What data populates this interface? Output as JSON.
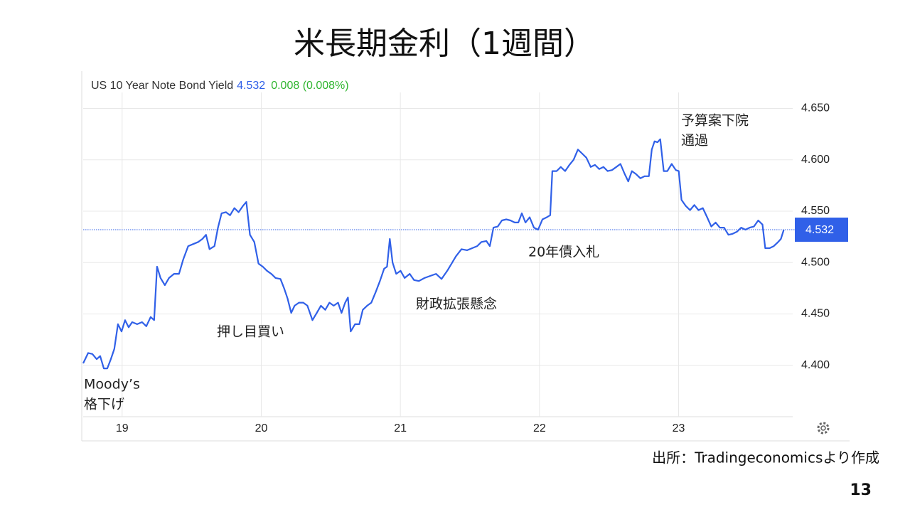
{
  "title": "米長期金利（1週間）",
  "source": "出所：Tradingeconomicsより作成",
  "page_number": "13",
  "chart_data": {
    "type": "line",
    "title": "US 10 Year Note Bond Yield",
    "last_price": 4.532,
    "change": "0.008 (0.008%)",
    "color": "#3060e8",
    "grid": true,
    "xlim": [
      18.72,
      23.82
    ],
    "xticks": [
      19,
      20,
      21,
      22,
      23
    ],
    "ylim": [
      4.35,
      4.66
    ],
    "yticks": [
      {
        "value": 4.4,
        "label": "4.400"
      },
      {
        "value": 4.45,
        "label": "4.450"
      },
      {
        "value": 4.5,
        "label": "4.500"
      },
      {
        "value": 4.55,
        "label": "4.550"
      },
      {
        "value": 4.6,
        "label": "4.600"
      },
      {
        "value": 4.65,
        "label": "4.650"
      }
    ],
    "annotations": [
      [
        "Moody’s",
        "格下げ"
      ],
      [
        "押し目買い"
      ],
      [
        "財政拡張懸念"
      ],
      [
        "20年債入札"
      ],
      [
        "予算案下院",
        "通過"
      ]
    ],
    "x": [
      18.72,
      18.756,
      18.786,
      18.817,
      18.842,
      18.868,
      18.893,
      18.919,
      18.944,
      18.97,
      18.996,
      19.021,
      19.047,
      19.072,
      19.108,
      19.143,
      19.174,
      19.205,
      19.23,
      19.251,
      19.276,
      19.307,
      19.337,
      19.373,
      19.409,
      19.439,
      19.475,
      19.511,
      19.547,
      19.577,
      19.603,
      19.628,
      19.664,
      19.689,
      19.715,
      19.746,
      19.776,
      19.807,
      19.837,
      19.868,
      19.893,
      19.919,
      19.95,
      19.98,
      20.011,
      20.041,
      20.072,
      20.103,
      20.138,
      20.164,
      20.189,
      20.215,
      20.24,
      20.271,
      20.302,
      20.332,
      20.368,
      20.399,
      20.429,
      20.46,
      20.49,
      20.521,
      20.552,
      20.577,
      20.603,
      20.623,
      20.643,
      20.674,
      20.705,
      20.73,
      20.761,
      20.791,
      20.822,
      20.853,
      20.883,
      20.904,
      20.924,
      20.944,
      20.97,
      21.001,
      21.031,
      21.067,
      21.098,
      21.133,
      21.174,
      21.215,
      21.256,
      21.296,
      21.337,
      21.368,
      21.399,
      21.439,
      21.48,
      21.516,
      21.552,
      21.582,
      21.618,
      21.643,
      21.669,
      21.7,
      21.73,
      21.761,
      21.791,
      21.822,
      21.848,
      21.873,
      21.899,
      21.929,
      21.96,
      21.99,
      22.021,
      22.052,
      22.077,
      22.092,
      22.123,
      22.153,
      22.184,
      22.215,
      22.245,
      22.276,
      22.307,
      22.337,
      22.368,
      22.399,
      22.429,
      22.46,
      22.49,
      22.521,
      22.552,
      22.582,
      22.613,
      22.638,
      22.664,
      22.694,
      22.725,
      22.756,
      22.786,
      22.807,
      22.827,
      22.848,
      22.868,
      22.893,
      22.919,
      22.95,
      22.98,
      23.001,
      23.021,
      23.052,
      23.082,
      23.113,
      23.143,
      23.174,
      23.205,
      23.235,
      23.266,
      23.296,
      23.327,
      23.358,
      23.388,
      23.419,
      23.45,
      23.48,
      23.511,
      23.541,
      23.572,
      23.603,
      23.623,
      23.654,
      23.684,
      23.715,
      23.735,
      23.756
    ],
    "series": [
      {
        "name": "US 10 Year Note Bond Yield",
        "color": "#3060e8",
        "values": [
          4.402,
          4.412,
          4.411,
          4.406,
          4.409,
          4.397,
          4.397,
          4.406,
          4.416,
          4.44,
          4.433,
          4.444,
          4.437,
          4.442,
          4.44,
          4.442,
          4.438,
          4.447,
          4.444,
          4.496,
          4.485,
          4.478,
          4.485,
          4.489,
          4.489,
          4.503,
          4.516,
          4.518,
          4.52,
          4.523,
          4.527,
          4.513,
          4.516,
          4.534,
          4.548,
          4.549,
          4.546,
          4.553,
          4.549,
          4.555,
          4.559,
          4.527,
          4.52,
          4.499,
          4.496,
          4.492,
          4.489,
          4.485,
          4.484,
          4.475,
          4.465,
          4.451,
          4.458,
          4.461,
          4.461,
          4.458,
          4.444,
          4.451,
          4.458,
          4.454,
          4.461,
          4.458,
          4.461,
          4.451,
          4.461,
          4.466,
          4.433,
          4.44,
          4.44,
          4.454,
          4.458,
          4.461,
          4.471,
          4.482,
          4.494,
          4.496,
          4.523,
          4.5,
          4.489,
          4.492,
          4.485,
          4.489,
          4.483,
          4.482,
          4.485,
          4.487,
          4.489,
          4.484,
          4.492,
          4.499,
          4.506,
          4.513,
          4.512,
          4.514,
          4.516,
          4.52,
          4.521,
          4.516,
          4.534,
          4.535,
          4.541,
          4.542,
          4.541,
          4.539,
          4.539,
          4.548,
          4.539,
          4.544,
          4.534,
          4.532,
          4.542,
          4.544,
          4.546,
          4.589,
          4.589,
          4.593,
          4.589,
          4.595,
          4.6,
          4.61,
          4.606,
          4.602,
          4.593,
          4.595,
          4.591,
          4.593,
          4.589,
          4.59,
          4.593,
          4.596,
          4.586,
          4.579,
          4.589,
          4.586,
          4.582,
          4.584,
          4.584,
          4.61,
          4.618,
          4.617,
          4.62,
          4.589,
          4.589,
          4.596,
          4.59,
          4.589,
          4.561,
          4.555,
          4.551,
          4.556,
          4.551,
          4.553,
          4.544,
          4.535,
          4.539,
          4.534,
          4.534,
          4.527,
          4.528,
          4.53,
          4.534,
          4.532,
          4.534,
          4.535,
          4.541,
          4.537,
          4.514,
          4.514,
          4.516,
          4.52,
          4.523,
          4.532
        ]
      }
    ]
  }
}
